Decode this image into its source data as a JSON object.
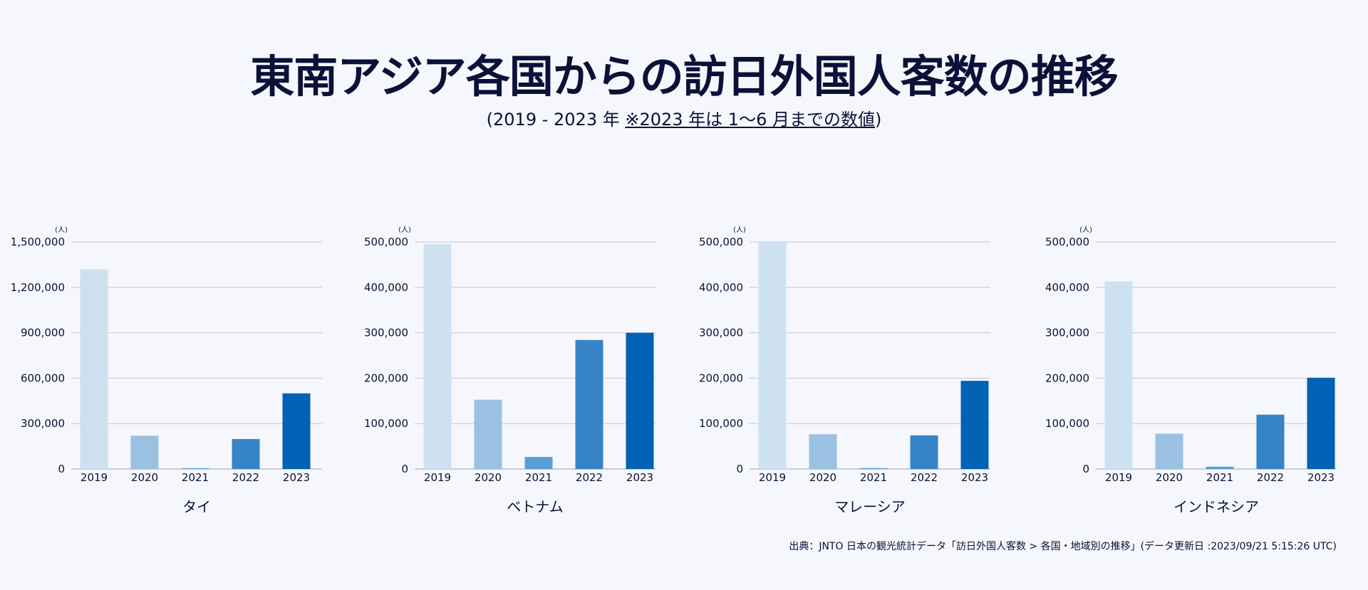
{
  "title": "東南アジア各国からの訪日外国人客数の推移",
  "subtitle": {
    "open": "(",
    "plain": "2019 - 2023 年 ",
    "underlined": "※2023 年は 1〜6 月までの数値",
    "close": ")"
  },
  "source": "出典：JNTO 日本の観光統計データ「訪日外国人客数 > 各国・地域別の推移」(データ更新日 :2023/09/21 5:15:26 UTC)",
  "colors": {
    "2019": "#cde1f0",
    "2020": "#9ac1e2",
    "2021": "#5a9fd4",
    "2022": "#3684c7",
    "2023": "#0062b4"
  },
  "chart_data": [
    {
      "type": "bar",
      "xlabel": "タイ",
      "unit_label": "(人)",
      "categories": [
        "2019",
        "2020",
        "2021",
        "2022",
        "2023"
      ],
      "values": [
        1318977,
        219773,
        5000,
        198037,
        499700
      ],
      "ylim": [
        0,
        1500000
      ],
      "yticks": [
        "0",
        "300,000",
        "600,000",
        "900,000",
        "1,200,000",
        "1,500,000"
      ],
      "grid": true
    },
    {
      "type": "bar",
      "xlabel": "ベトナム",
      "unit_label": "(人)",
      "categories": [
        "2019",
        "2020",
        "2021",
        "2022",
        "2023"
      ],
      "values": [
        495051,
        152559,
        26586,
        284113,
        300000
      ],
      "ylim": [
        0,
        500000
      ],
      "yticks": [
        "0",
        "100,000",
        "200,000",
        "300,000",
        "400,000",
        "500,000"
      ],
      "grid": true
    },
    {
      "type": "bar",
      "xlabel": "マレーシア",
      "unit_label": "(人)",
      "categories": [
        "2019",
        "2020",
        "2021",
        "2022",
        "2023"
      ],
      "values": [
        501592,
        76573,
        2000,
        74083,
        194200
      ],
      "ylim": [
        0,
        500000
      ],
      "yticks": [
        "0",
        "100,000",
        "200,000",
        "300,000",
        "400,000",
        "500,000"
      ],
      "grid": true
    },
    {
      "type": "bar",
      "xlabel": "インドネシア",
      "unit_label": "(人)",
      "categories": [
        "2019",
        "2020",
        "2021",
        "2022",
        "2023"
      ],
      "values": [
        412779,
        77724,
        5000,
        119723,
        201000
      ],
      "ylim": [
        0,
        500000
      ],
      "yticks": [
        "0",
        "100,000",
        "200,000",
        "300,000",
        "400,000",
        "500,000"
      ],
      "grid": true
    }
  ]
}
